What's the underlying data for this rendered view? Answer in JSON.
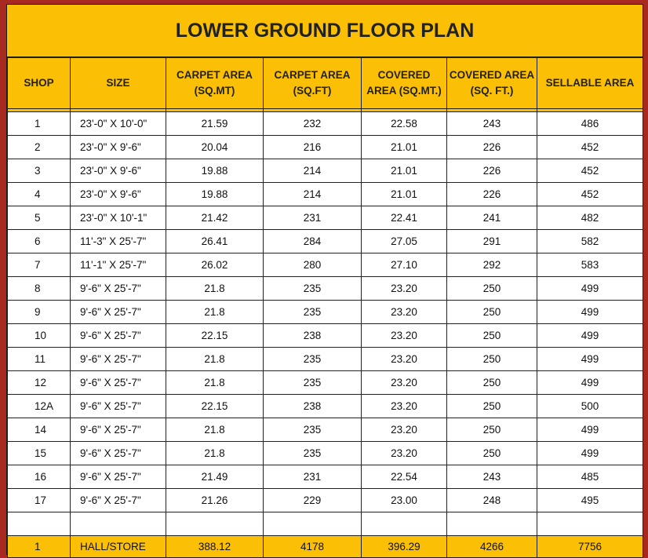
{
  "title": "LOWER GROUND FLOOR PLAN",
  "columns": [
    {
      "line1": "SHOP",
      "line2": ""
    },
    {
      "line1": "SIZE",
      "line2": ""
    },
    {
      "line1": "CARPET AREA",
      "line2": "(SQ.MT)"
    },
    {
      "line1": "CARPET AREA",
      "line2": "(SQ.FT)"
    },
    {
      "line1": "COVERED",
      "line2": "AREA (SQ.MT.)"
    },
    {
      "line1": "COVERED AREA",
      "line2": "(SQ. FT.)"
    },
    {
      "line1": "SELLABLE AREA",
      "line2": ""
    }
  ],
  "rows": [
    [
      "1",
      "23'-0\" X 10'-0\"",
      "21.59",
      "232",
      "22.58",
      "243",
      "486"
    ],
    [
      "2",
      "23'-0\" X 9'-6\"",
      "20.04",
      "216",
      "21.01",
      "226",
      "452"
    ],
    [
      "3",
      "23'-0\" X 9'-6\"",
      "19.88",
      "214",
      "21.01",
      "226",
      "452"
    ],
    [
      "4",
      "23'-0\" X 9'-6\"",
      "19.88",
      "214",
      "21.01",
      "226",
      "452"
    ],
    [
      "5",
      "23'-0\" X 10'-1\"",
      "21.42",
      "231",
      "22.41",
      "241",
      "482"
    ],
    [
      "6",
      "11'-3\" X 25'-7\"",
      "26.41",
      "284",
      "27.05",
      "291",
      "582"
    ],
    [
      "7",
      "11'-1\" X 25'-7\"",
      "26.02",
      "280",
      "27.10",
      "292",
      "583"
    ],
    [
      "8",
      "9'-6\" X 25'-7\"",
      "21.8",
      "235",
      "23.20",
      "250",
      "499"
    ],
    [
      "9",
      "9'-6\" X 25'-7\"",
      "21.8",
      "235",
      "23.20",
      "250",
      "499"
    ],
    [
      "10",
      "9'-6\" X 25'-7\"",
      "22.15",
      "238",
      "23.20",
      "250",
      "499"
    ],
    [
      "11",
      "9'-6\" X 25'-7\"",
      "21.8",
      "235",
      "23.20",
      "250",
      "499"
    ],
    [
      "12",
      "9'-6\" X 25'-7\"",
      "21.8",
      "235",
      "23.20",
      "250",
      "499"
    ],
    [
      "12A",
      "9'-6\" X 25'-7\"",
      "22.15",
      "238",
      "23.20",
      "250",
      "500"
    ],
    [
      "14",
      "9'-6\" X 25'-7\"",
      "21.8",
      "235",
      "23.20",
      "250",
      "499"
    ],
    [
      "15",
      "9'-6\" X 25'-7\"",
      "21.8",
      "235",
      "23.20",
      "250",
      "499"
    ],
    [
      "16",
      "9'-6\" X 25'-7\"",
      "21.49",
      "231",
      "22.54",
      "243",
      "485"
    ],
    [
      "17",
      "9'-6\" X 25'-7\"",
      "21.26",
      "229",
      "23.00",
      "248",
      "495"
    ]
  ],
  "total_row": [
    "1",
    "HALL/STORE",
    "388.12",
    "4178",
    "396.29",
    "4266",
    "7756"
  ],
  "colors": {
    "header_fill": "#fbbf05",
    "background": "#a8291f",
    "border": "#222222"
  }
}
